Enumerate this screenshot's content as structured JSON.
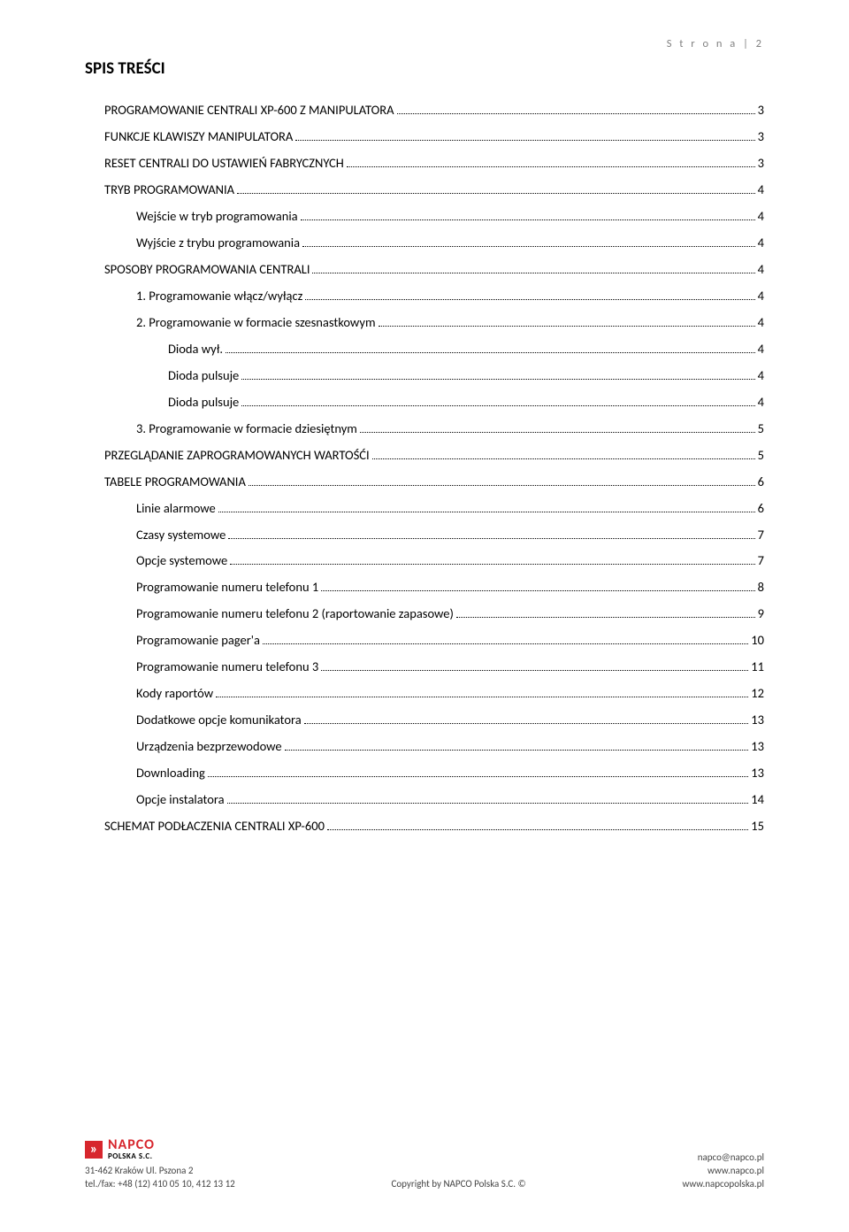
{
  "colors": {
    "text": "#000000",
    "muted": "#808080",
    "brand_red": "#d7262d",
    "background": "#ffffff"
  },
  "fonts": {
    "body_family": "Calibri, Arial, sans-serif",
    "heading_size_pt": 14,
    "toc_size_pt": 11,
    "footer_size_pt": 8,
    "header_size_pt": 9
  },
  "header": {
    "text": "S t r o n a  | 2"
  },
  "heading": "SPIS TREŚCI",
  "toc": [
    {
      "label": "PROGRAMOWANIE CENTRALI XP-600 Z MANIPULATORA",
      "page": "3",
      "indent": 0
    },
    {
      "label": "FUNKCJE KLAWISZY MANIPULATORA",
      "page": "3",
      "indent": 0
    },
    {
      "label": "RESET CENTRALI DO USTAWIEŃ FABRYCZNYCH",
      "page": "3",
      "indent": 0
    },
    {
      "label": "TRYB PROGRAMOWANIA",
      "page": "4",
      "indent": 0
    },
    {
      "label": "Wejście w tryb programowania",
      "page": "4",
      "indent": 1
    },
    {
      "label": "Wyjście z trybu programowania",
      "page": "4",
      "indent": 1
    },
    {
      "label": "SPOSOBY PROGRAMOWANIA CENTRALI",
      "page": "4",
      "indent": 0
    },
    {
      "label": "1. Programowanie włącz/wyłącz",
      "page": "4",
      "indent": 1
    },
    {
      "label": "2. Programowanie w formacie szesnastkowym",
      "page": "4",
      "indent": 1
    },
    {
      "label": "Dioda wył.",
      "page": "4",
      "indent": 2
    },
    {
      "label": "Dioda pulsuje",
      "page": "4",
      "indent": 2
    },
    {
      "label": "Dioda pulsuje",
      "page": "4",
      "indent": 2
    },
    {
      "label": "3. Programowanie w formacie dziesiętnym",
      "page": "5",
      "indent": 1
    },
    {
      "label": "PRZEGLĄDANIE ZAPROGRAMOWANYCH WARTOŚĆI",
      "page": "5",
      "indent": 0
    },
    {
      "label": "TABELE PROGRAMOWANIA",
      "page": "6",
      "indent": 0
    },
    {
      "label": "Linie alarmowe",
      "page": "6",
      "indent": 1
    },
    {
      "label": "Czasy systemowe",
      "page": "7",
      "indent": 1
    },
    {
      "label": "Opcje systemowe",
      "page": "7",
      "indent": 1
    },
    {
      "label": "Programowanie numeru telefonu 1",
      "page": "8",
      "indent": 1
    },
    {
      "label": "Programowanie numeru telefonu 2 (raportowanie zapasowe)",
      "page": "9",
      "indent": 1
    },
    {
      "label": "Programowanie pager'a",
      "page": "10",
      "indent": 1
    },
    {
      "label": "Programowanie numeru telefonu 3",
      "page": "11",
      "indent": 1
    },
    {
      "label": "Kody raportów",
      "page": "12",
      "indent": 1
    },
    {
      "label": "Dodatkowe opcje komunikatora",
      "page": "13",
      "indent": 1
    },
    {
      "label": "Urządzenia bezprzewodowe",
      "page": "13",
      "indent": 1
    },
    {
      "label": "Downloading",
      "page": "13",
      "indent": 1
    },
    {
      "label": "Opcje instalatora",
      "page": "14",
      "indent": 1
    },
    {
      "label": "SCHEMAT PODŁACZENIA CENTRALI XP-600",
      "page": "15",
      "indent": 0
    }
  ],
  "footer": {
    "logo_glyph": "»",
    "logo_brand": "NAPCO",
    "logo_sub": "POLSKA S.C.",
    "left_line1": "31-462 Kraków Ul. Pszona 2",
    "left_line2": "tel./fax: +48 (12) 410 05 10, 412 13 12",
    "center": "Copyright by NAPCO Polska S.C. ©",
    "right_line1": "napco@napco.pl",
    "right_line2": "www.napco.pl",
    "right_line3": "www.napcopolska.pl"
  }
}
